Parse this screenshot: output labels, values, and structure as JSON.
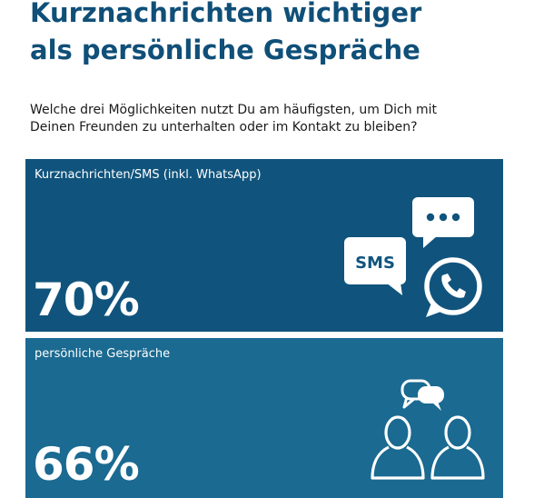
{
  "header": {
    "title_line1": "Kurznachrichten wichtiger",
    "title_line2": "als persönliche Gespräche",
    "question_line1": "Welche drei Möglichkeiten nutzt Du am häufigsten, um Dich mit",
    "question_line2": "Deinen Freunden zu unterhalten oder im Kontakt zu bleiben?"
  },
  "panels": [
    {
      "label": "Kurznachrichten/SMS (inkl. WhatsApp)",
      "value": "70%",
      "fraction": 0.7,
      "sms_icon_text": "SMS",
      "icons": [
        "chat-dots-bubble-icon",
        "sms-bubble-icon",
        "whatsapp-icon"
      ]
    },
    {
      "label": "persönliche Gespräche",
      "value": "66%",
      "fraction": 0.66,
      "icons": [
        "speech-bubbles-icon",
        "person-outline-icon",
        "person-outline-icon"
      ]
    }
  ],
  "colors": {
    "title": "#0f4f78",
    "panel_1_background": "#10547d",
    "panel_2_background": "#1a6a91",
    "panel_text": "#ffffff"
  }
}
